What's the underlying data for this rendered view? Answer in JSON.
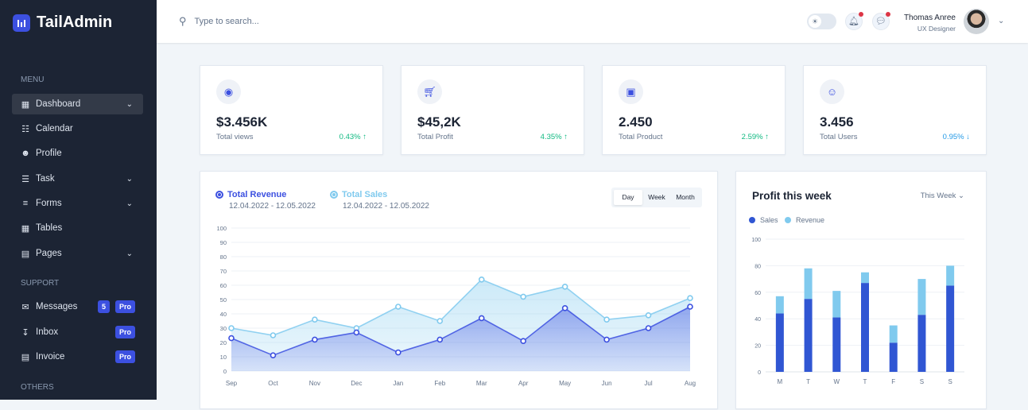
{
  "app": {
    "name": "TailAdmin"
  },
  "sidebar": {
    "sections": [
      "MENU",
      "SUPPORT",
      "OTHERS"
    ],
    "items": [
      {
        "label": "Dashboard",
        "icon": "grid-icon",
        "chevron": true,
        "active": true
      },
      {
        "label": "Calendar",
        "icon": "calendar-icon"
      },
      {
        "label": "Profile",
        "icon": "user-icon"
      },
      {
        "label": "Task",
        "icon": "list-icon",
        "chevron": true
      },
      {
        "label": "Forms",
        "icon": "forms-icon",
        "chevron": true
      },
      {
        "label": "Tables",
        "icon": "table-icon"
      },
      {
        "label": "Pages",
        "icon": "pages-icon",
        "chevron": true
      },
      {
        "label": "Messages",
        "icon": "mail-icon",
        "count": "5",
        "pro": "Pro"
      },
      {
        "label": "Inbox",
        "icon": "inbox-icon",
        "pro": "Pro"
      },
      {
        "label": "Invoice",
        "icon": "invoice-icon",
        "pro": "Pro"
      }
    ]
  },
  "header": {
    "search_placeholder": "Type to search...",
    "user_name": "Thomas Anree",
    "user_role": "UX Designer",
    "notification_dot_color": "#dc3545"
  },
  "stats": [
    {
      "value": "$3.456K",
      "label": "Total views",
      "change": "0.43%",
      "dir": "up",
      "icon": "eye-icon"
    },
    {
      "value": "$45,2K",
      "label": "Total Profit",
      "change": "4.35%",
      "dir": "up",
      "icon": "cart-icon"
    },
    {
      "value": "2.450",
      "label": "Total Product",
      "change": "2.59%",
      "dir": "up",
      "icon": "bag-icon"
    },
    {
      "value": "3.456",
      "label": "Total Users",
      "change": "0.95%",
      "dir": "down",
      "icon": "users-icon"
    }
  ],
  "revenue_chart": {
    "legend": [
      {
        "name": "Total Revenue",
        "range": "12.04.2022 - 12.05.2022"
      },
      {
        "name": "Total Sales",
        "range": "12.04.2022 - 12.05.2022"
      }
    ],
    "periods": [
      "Day",
      "Week",
      "Month"
    ],
    "selected_period": "Day"
  },
  "profit_chart": {
    "title": "Profit this week",
    "filter": "This Week"
  },
  "chart_data": [
    {
      "type": "area",
      "categories": [
        "Sep",
        "Oct",
        "Nov",
        "Dec",
        "Jan",
        "Feb",
        "Mar",
        "Apr",
        "May",
        "Jun",
        "Jul",
        "Aug"
      ],
      "ylim": [
        0,
        100
      ],
      "yticks": [
        0,
        10,
        20,
        30,
        40,
        50,
        60,
        70,
        80,
        90,
        100
      ],
      "grid": true,
      "series": [
        {
          "name": "Total Revenue",
          "color": "#3c50e0",
          "values": [
            23,
            11,
            22,
            27,
            13,
            22,
            37,
            21,
            44,
            22,
            30,
            45
          ]
        },
        {
          "name": "Total Sales",
          "color": "#80caee",
          "values": [
            30,
            25,
            36,
            30,
            45,
            35,
            64,
            52,
            59,
            36,
            39,
            51
          ]
        }
      ]
    },
    {
      "type": "bar",
      "stacked": true,
      "categories": [
        "M",
        "T",
        "W",
        "T",
        "F",
        "S",
        "S"
      ],
      "ylim": [
        0,
        100
      ],
      "yticks": [
        0,
        20,
        40,
        60,
        80,
        100
      ],
      "grid": true,
      "legend": "top-left",
      "series": [
        {
          "name": "Sales",
          "color": "#3056d3",
          "values": [
            44,
            55,
            41,
            67,
            22,
            43,
            65
          ]
        },
        {
          "name": "Revenue",
          "color": "#80caee",
          "values": [
            13,
            23,
            20,
            8,
            13,
            27,
            15
          ]
        }
      ]
    }
  ]
}
